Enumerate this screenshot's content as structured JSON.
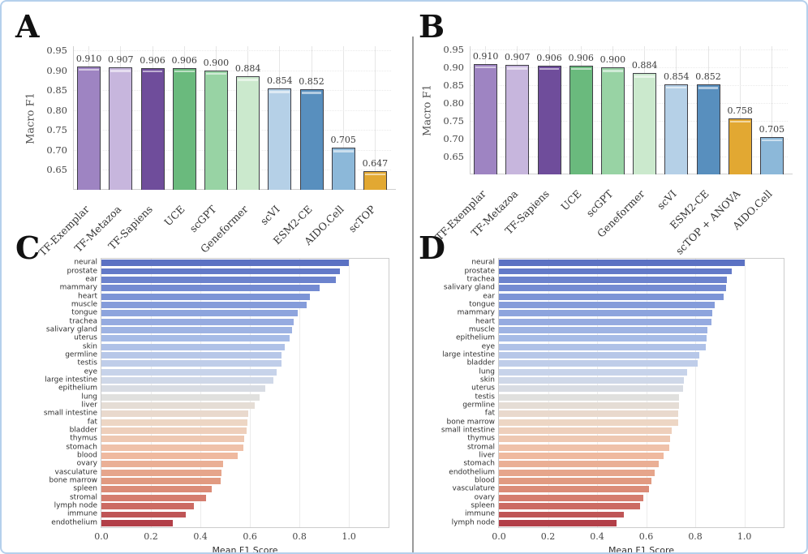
{
  "panels": {
    "a": "A",
    "b": "B",
    "c": "C",
    "d": "D"
  },
  "colors": {
    "frame_border": "#b5d0ec",
    "divider": "#9a9a9a",
    "grid": "#e6e6e6",
    "spine": "#cfcfcf",
    "box_border": "#cccccc",
    "tick_text": "#454545",
    "axis_label_text": "#555555",
    "bar_value_text": "#3c3c3c",
    "bar_edge": "#3f3f46"
  },
  "colormap_anchors": [
    {
      "t": 0.0,
      "color": "#5b71c3"
    },
    {
      "t": 0.14,
      "color": "#7f97d8"
    },
    {
      "t": 0.3,
      "color": "#a9bde7"
    },
    {
      "t": 0.44,
      "color": "#ccd7ea"
    },
    {
      "t": 0.52,
      "color": "#e1e0dd"
    },
    {
      "t": 0.62,
      "color": "#eed5c2"
    },
    {
      "t": 0.74,
      "color": "#efbaa0"
    },
    {
      "t": 0.84,
      "color": "#e19a81"
    },
    {
      "t": 0.92,
      "color": "#d2756a"
    },
    {
      "t": 1.0,
      "color": "#b23f48"
    }
  ],
  "chart_data": [
    {
      "id": "A",
      "type": "bar",
      "ylabel": "Macro F1",
      "ylim": [
        0.6,
        0.96
      ],
      "yticks": [
        "0.95",
        "0.90",
        "0.85",
        "0.80",
        "0.75",
        "0.70",
        "0.65"
      ],
      "categories": [
        "TF-Exemplar",
        "TF-Metazoa",
        "TF-Sapiens",
        "UCE",
        "scGPT",
        "Geneformer",
        "scVI",
        "ESM2-CE",
        "AIDO.Cell",
        "scTOP"
      ],
      "values": [
        0.91,
        0.907,
        0.906,
        0.906,
        0.9,
        0.884,
        0.854,
        0.852,
        0.705,
        0.647
      ],
      "value_labels": [
        "0.910",
        "0.907",
        "0.906",
        "0.906",
        "0.900",
        "0.884",
        "0.854",
        "0.852",
        "0.705",
        "0.647"
      ],
      "bar_colors": [
        "#9e84c2",
        "#c7b6dd",
        "#6f4d9b",
        "#6aba7d",
        "#98d3a4",
        "#cbe9cd",
        "#b5d0e7",
        "#588fbe",
        "#8cb8d9",
        "#e2a832"
      ]
    },
    {
      "id": "B",
      "type": "bar",
      "ylabel": "Macro F1",
      "ylim": [
        0.6,
        0.96
      ],
      "yticks": [
        "0.95",
        "0.90",
        "0.85",
        "0.80",
        "0.75",
        "0.70",
        "0.65"
      ],
      "categories": [
        "TF-Exemplar",
        "TF-Metazoa",
        "TF-Sapiens",
        "UCE",
        "scGPT",
        "Geneformer",
        "scVI",
        "ESM2-CE",
        "scTOP + ANOVA",
        "AIDO.Cell"
      ],
      "values": [
        0.91,
        0.907,
        0.906,
        0.906,
        0.9,
        0.884,
        0.854,
        0.852,
        0.758,
        0.705
      ],
      "value_labels": [
        "0.910",
        "0.907",
        "0.906",
        "0.906",
        "0.900",
        "0.884",
        "0.854",
        "0.852",
        "0.758",
        "0.705"
      ],
      "bar_colors": [
        "#9e84c2",
        "#c7b6dd",
        "#6f4d9b",
        "#6aba7d",
        "#98d3a4",
        "#cbe9cd",
        "#b5d0e7",
        "#588fbe",
        "#e2a832",
        "#8cb8d9"
      ]
    },
    {
      "id": "C",
      "type": "bar-horizontal",
      "xlabel": "Mean F1 Score",
      "xlim": [
        0,
        1.16
      ],
      "xticks": [
        "0.0",
        "0.2",
        "0.4",
        "0.6",
        "0.8",
        "1.0"
      ],
      "categories": [
        "neural",
        "prostate",
        "ear",
        "mammary",
        "heart",
        "muscle",
        "tongue",
        "trachea",
        "salivary gland",
        "uterus",
        "skin",
        "germline",
        "testis",
        "eye",
        "large intestine",
        "epithelium",
        "lung",
        "liver",
        "small intestine",
        "fat",
        "bladder",
        "thymus",
        "stomach",
        "blood",
        "ovary",
        "vasculature",
        "bone marrow",
        "spleen",
        "stromal",
        "lymph node",
        "immune",
        "endothelium"
      ],
      "values": [
        1.0,
        0.962,
        0.947,
        0.881,
        0.843,
        0.829,
        0.794,
        0.778,
        0.77,
        0.759,
        0.74,
        0.729,
        0.727,
        0.709,
        0.696,
        0.663,
        0.638,
        0.62,
        0.593,
        0.59,
        0.585,
        0.576,
        0.574,
        0.549,
        0.491,
        0.486,
        0.481,
        0.446,
        0.422,
        0.375,
        0.342,
        0.288
      ]
    },
    {
      "id": "D",
      "type": "bar-horizontal",
      "xlabel": "Mean F1 Score",
      "xlim": [
        0,
        1.16
      ],
      "xticks": [
        "0.0",
        "0.2",
        "0.4",
        "0.6",
        "0.8",
        "1.0"
      ],
      "categories": [
        "neural",
        "prostate",
        "trachea",
        "salivary gland",
        "ear",
        "tongue",
        "mammary",
        "heart",
        "muscle",
        "epithelium",
        "eye",
        "large intestine",
        "bladder",
        "lung",
        "skin",
        "uterus",
        "testis",
        "germline",
        "fat",
        "bone marrow",
        "small intestine",
        "thymus",
        "stromal",
        "liver",
        "stomach",
        "endothelium",
        "blood",
        "vasculature",
        "ovary",
        "spleen",
        "immune",
        "lymph node"
      ],
      "values": [
        1.0,
        0.947,
        0.93,
        0.925,
        0.916,
        0.879,
        0.87,
        0.865,
        0.849,
        0.845,
        0.843,
        0.816,
        0.81,
        0.767,
        0.753,
        0.751,
        0.734,
        0.733,
        0.732,
        0.729,
        0.705,
        0.697,
        0.694,
        0.672,
        0.65,
        0.634,
        0.622,
        0.612,
        0.589,
        0.574,
        0.509,
        0.48
      ]
    }
  ]
}
